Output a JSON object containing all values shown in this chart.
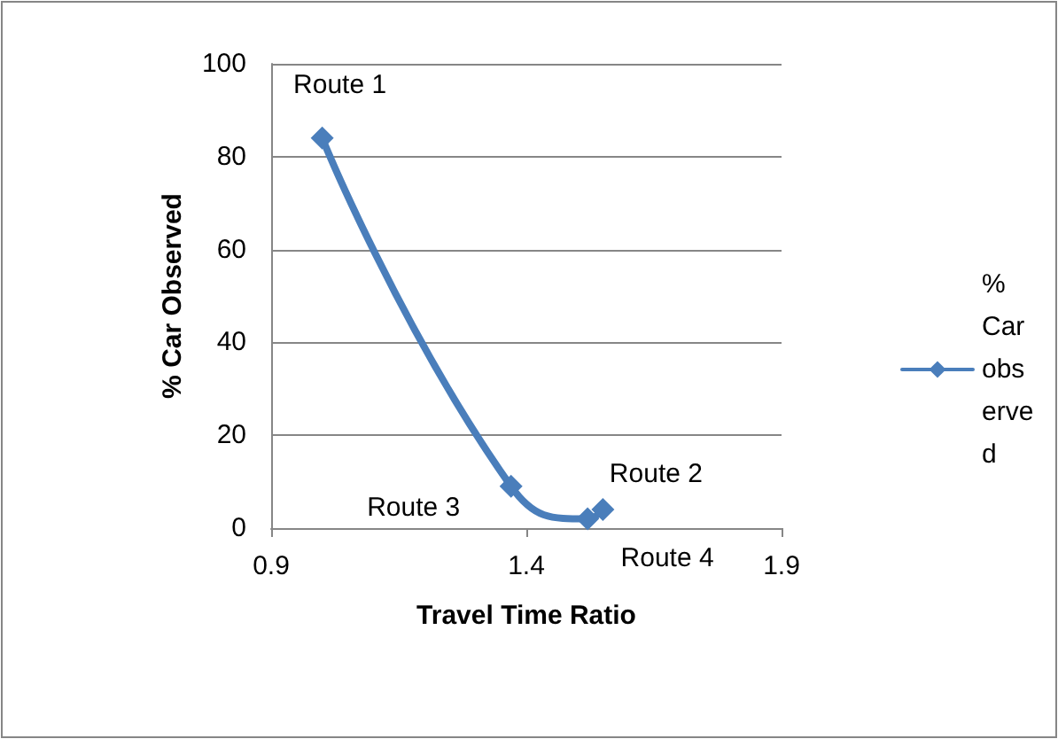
{
  "chart_data": {
    "type": "line",
    "xlabel": "Travel Time Ratio",
    "ylabel": "% Car Observed",
    "series": [
      {
        "name": "% Car observed",
        "color": "#4a7ebb",
        "x": [
          1.0,
          1.37,
          1.52,
          1.55
        ],
        "values": [
          84,
          9,
          2,
          4
        ]
      }
    ],
    "xlim": [
      0.9,
      1.9
    ],
    "xticks": [
      0.9,
      1.4,
      1.9
    ],
    "ylim": [
      0,
      100
    ],
    "yticks": [
      0,
      20,
      40,
      60,
      80,
      100
    ],
    "grid": "y",
    "legend": "right",
    "marker": "diamond",
    "line_style": "solid",
    "annotations": [
      {
        "text": "Route 1",
        "x": 1.0,
        "y": 84
      },
      {
        "text": "Route 3",
        "x": 1.37,
        "y": 9
      },
      {
        "text": "Route 4",
        "x": 1.52,
        "y": 2
      },
      {
        "text": "Route 2",
        "x": 1.55,
        "y": 4
      }
    ]
  }
}
